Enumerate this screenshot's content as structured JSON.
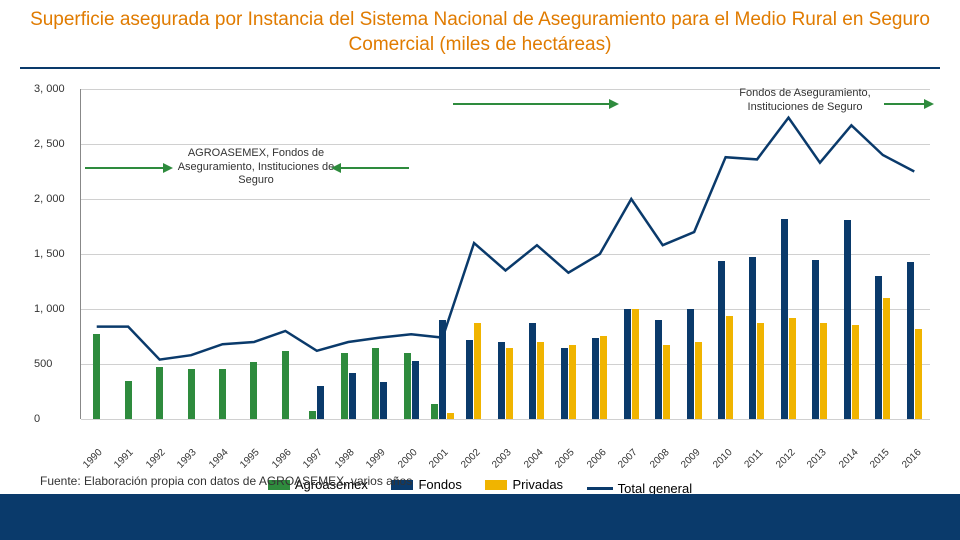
{
  "title": "Superficie asegurada por Instancia del Sistema Nacional de Aseguramiento para el Medio Rural en Seguro Comercial (miles de hectáreas)",
  "source": "Fuente: Elaboración propia con datos de AGROASEMEX, varios años",
  "chart": {
    "type": "bar+line",
    "ylim": [
      0,
      3000
    ],
    "ytick_step": 500,
    "yticks": [
      "0",
      "500",
      "1, 000",
      "1, 500",
      "2, 000",
      "2, 500",
      "3, 000"
    ],
    "grid_color": "#d0d0d0",
    "background_color": "#ffffff",
    "colors": {
      "agroasemex": "#2e8b3d",
      "fondos": "#0a3a6b",
      "privadas": "#f0b400",
      "total": "#0a3a6b"
    },
    "legend": {
      "agroasemex": "Agroasemex",
      "fondos": "Fondos",
      "privadas": "Privadas",
      "total": "Total general"
    },
    "years": [
      "1990",
      "1991",
      "1992",
      "1993",
      "1994",
      "1995",
      "1996",
      "1997",
      "1998",
      "1999",
      "2000",
      "2001",
      "2002",
      "2003",
      "2004",
      "2005",
      "2006",
      "2007",
      "2008",
      "2009",
      "2010",
      "2011",
      "2012",
      "2013",
      "2014",
      "2015",
      "2016"
    ],
    "series": {
      "agroasemex": [
        780,
        350,
        480,
        460,
        460,
        520,
        620,
        80,
        600,
        650,
        600,
        140,
        0,
        0,
        0,
        0,
        0,
        0,
        0,
        0,
        0,
        0,
        0,
        0,
        0,
        0,
        0
      ],
      "fondos": [
        0,
        0,
        0,
        0,
        0,
        0,
        0,
        300,
        420,
        340,
        530,
        900,
        720,
        700,
        880,
        650,
        740,
        1000,
        900,
        1000,
        1440,
        1480,
        1820,
        1450,
        1810,
        1300,
        1430
      ],
      "privadas": [
        0,
        0,
        0,
        0,
        0,
        0,
        0,
        0,
        0,
        0,
        0,
        60,
        880,
        650,
        700,
        680,
        760,
        1000,
        680,
        700,
        940,
        880,
        920,
        880,
        860,
        1100,
        820
      ],
      "total": [
        840,
        840,
        540,
        580,
        680,
        700,
        800,
        620,
        700,
        740,
        770,
        740,
        1600,
        1350,
        1580,
        1330,
        1500,
        2000,
        1580,
        1700,
        2380,
        2360,
        2740,
        2330,
        2670,
        2400,
        2250
      ]
    },
    "annotations": {
      "left": "AGROASEMEX, Fondos de Aseguramiento, Instituciones de Seguro",
      "right": "Fondos de Aseguramiento, Instituciones de Seguro"
    },
    "arrow_color": "#2e8b3d"
  },
  "title_color": "#e07b00",
  "footer_bg": "#0a3a6b",
  "underline_color": "#0a3a6b"
}
